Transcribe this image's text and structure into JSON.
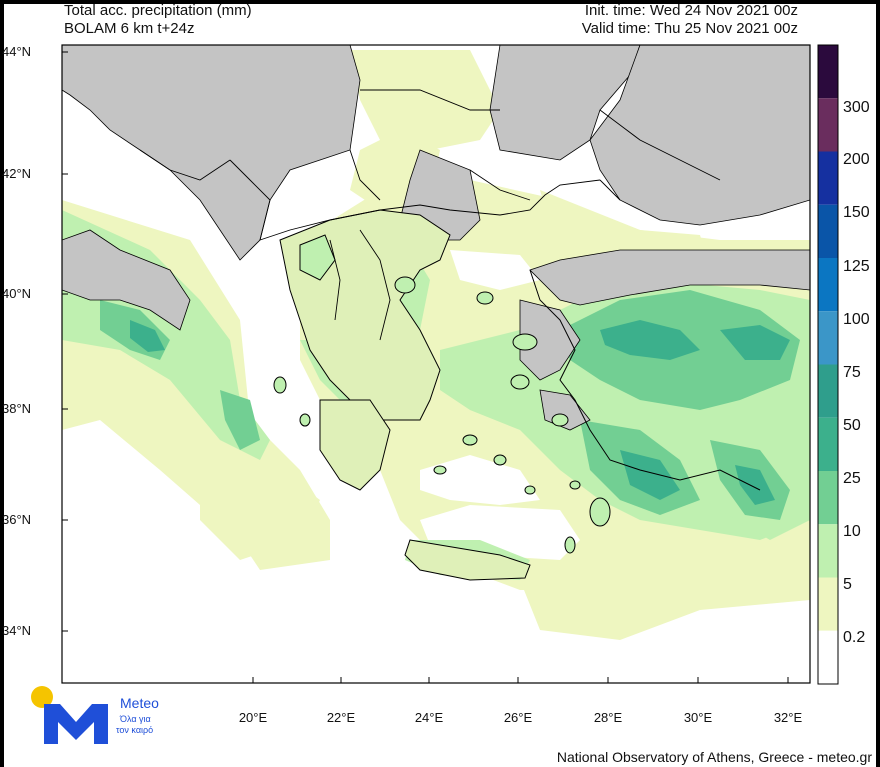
{
  "header": {
    "title": "Total acc. precipitation (mm)",
    "model": "BOLAM 6 km t+24z",
    "init_time": "Init. time: Wed 24 Nov 2021 00z",
    "valid_time": "Valid time: Thu 25 Nov 2021 00z"
  },
  "footer": {
    "credit": "National Observatory of Athens, Greece - meteo.gr"
  },
  "logo": {
    "name": "Meteo",
    "tagline_line1": "Όλα για",
    "tagline_line2": "τον καιρό",
    "colors": {
      "dot": "#f5c400",
      "mark": "#1f4fd8"
    }
  },
  "map": {
    "lat_labels": [
      "44°N",
      "42°N",
      "40°N",
      "38°N",
      "36°N",
      "34°N"
    ],
    "lon_labels": [
      "20°E",
      "22°E",
      "24°E",
      "26°E",
      "28°E",
      "30°E",
      "32°E"
    ],
    "land_color": "#c4c4c4",
    "border_color": "#000000"
  },
  "colorbar": {
    "labels": [
      "300",
      "200",
      "150",
      "125",
      "100",
      "75",
      "50",
      "25",
      "10",
      "5",
      "0.2"
    ],
    "colors": [
      "#2b0a3d",
      "#6a2d5e",
      "#1530a0",
      "#0a55a8",
      "#0b76c2",
      "#3b96c8",
      "#2f9e8c",
      "#3cb08c",
      "#72cf93",
      "#bff0b0",
      "#eef6c0",
      "#ffffff"
    ]
  }
}
